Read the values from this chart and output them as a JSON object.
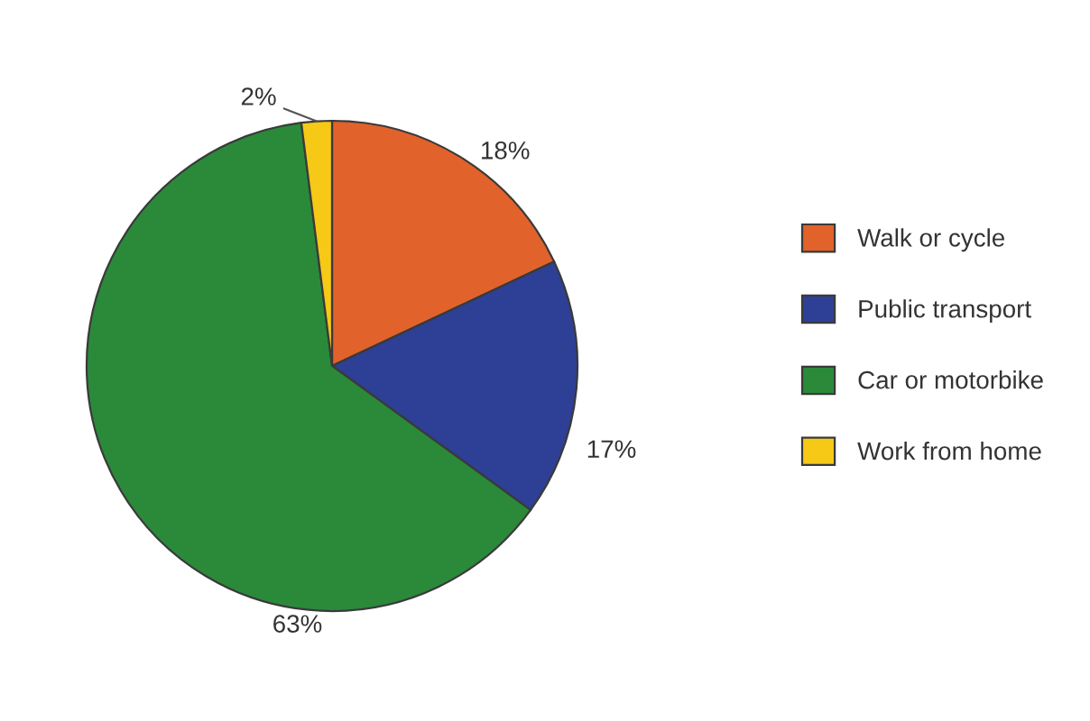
{
  "chart_data": {
    "type": "pie",
    "categories": [
      "Walk or cycle",
      "Public transport",
      "Car or motorbike",
      "Work from home"
    ],
    "values": [
      18,
      17,
      63,
      2
    ],
    "colors": [
      "#e2622b",
      "#2e3f96",
      "#2a8a3a",
      "#f5c915"
    ],
    "value_labels": [
      "18%",
      "17%",
      "63%",
      "2%"
    ],
    "legend": "right"
  }
}
